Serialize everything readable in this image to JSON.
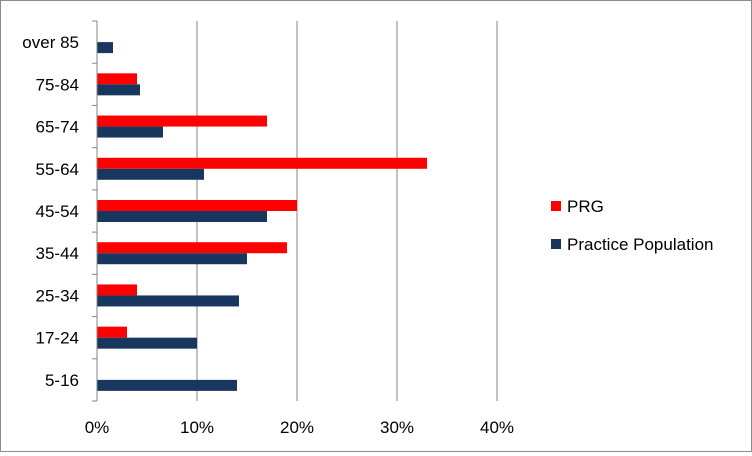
{
  "chart_data": {
    "type": "bar",
    "orientation": "horizontal",
    "categories": [
      "5-16",
      "17-24",
      "25-34",
      "35-44",
      "45-54",
      "55-64",
      "65-74",
      "75-84",
      "over 85"
    ],
    "series": [
      {
        "name": "PRG",
        "color": "#ff0000",
        "values": [
          0,
          3,
          4,
          19,
          20,
          33,
          17,
          4,
          0
        ]
      },
      {
        "name": "Practice Population",
        "color": "#17375e",
        "values": [
          14,
          10,
          14.2,
          15,
          17,
          10.7,
          6.6,
          4.3,
          1.6
        ]
      }
    ],
    "xlim": [
      0,
      40
    ],
    "x_ticks": [
      "0%",
      "10%",
      "20%",
      "30%",
      "40%"
    ],
    "grid": "vertical",
    "legend_position": "right",
    "title": "",
    "xlabel": "",
    "ylabel": ""
  }
}
